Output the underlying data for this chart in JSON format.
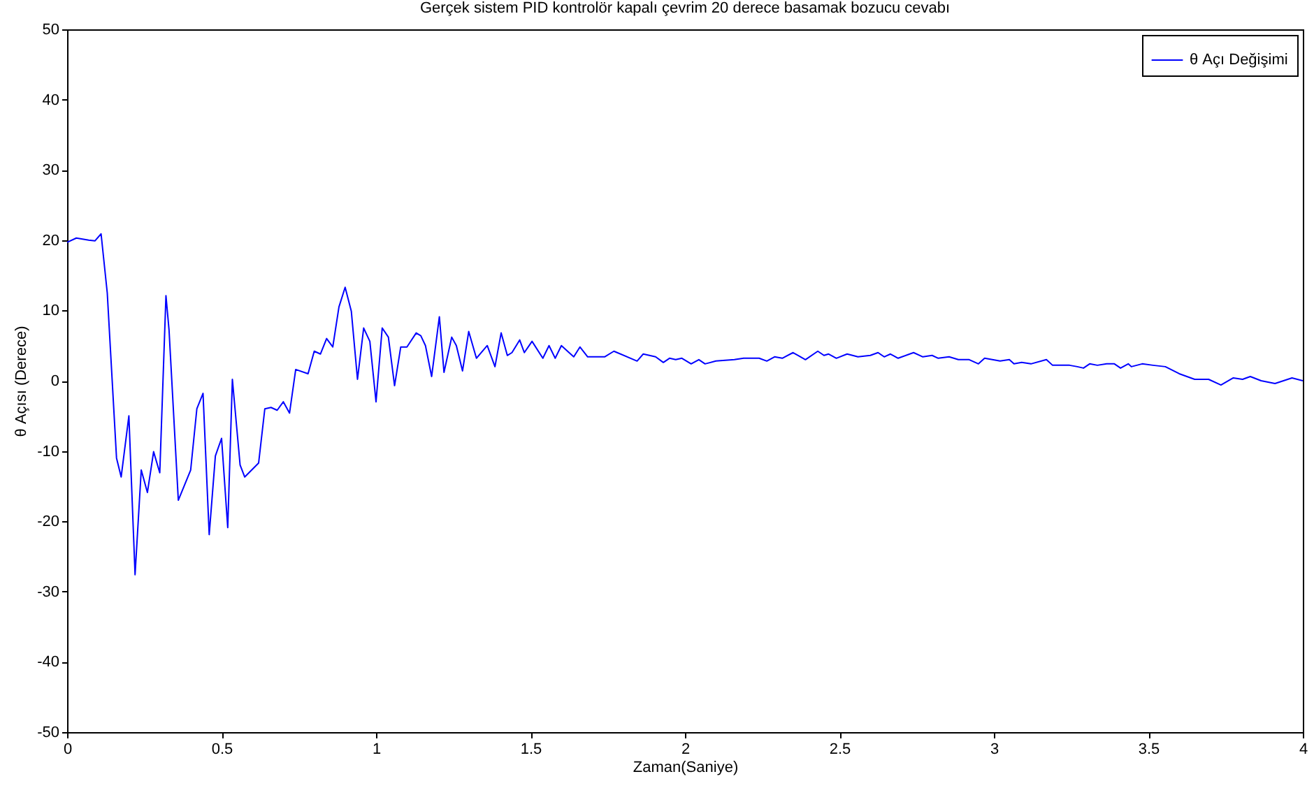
{
  "chart_data": {
    "type": "line",
    "title": "Gerçek sistem PID kontrolör kapalı çevrim 20 derece basamak bozucu cevabı",
    "xlabel": "Zaman(Saniye)",
    "ylabel": "θ Açısı (Derece)",
    "x": [
      0,
      0.03,
      0.07,
      0.09,
      0.11,
      0.13,
      0.16,
      0.175,
      0.2,
      0.22,
      0.24,
      0.26,
      0.28,
      0.3,
      0.32,
      0.33,
      0.36,
      0.4,
      0.42,
      0.44,
      0.46,
      0.48,
      0.5,
      0.52,
      0.535,
      0.56,
      0.575,
      0.62,
      0.64,
      0.66,
      0.68,
      0.7,
      0.72,
      0.74,
      0.78,
      0.8,
      0.82,
      0.84,
      0.86,
      0.88,
      0.9,
      0.92,
      0.94,
      0.96,
      0.98,
      1.0,
      1.02,
      1.04,
      1.06,
      1.08,
      1.1,
      1.13,
      1.145,
      1.16,
      1.18,
      1.205,
      1.22,
      1.245,
      1.26,
      1.28,
      1.3,
      1.325,
      1.36,
      1.385,
      1.405,
      1.425,
      1.44,
      1.465,
      1.48,
      1.505,
      1.54,
      1.56,
      1.58,
      1.6,
      1.64,
      1.66,
      1.685,
      1.74,
      1.77,
      1.845,
      1.865,
      1.905,
      1.93,
      1.95,
      1.97,
      1.99,
      2.02,
      2.045,
      2.065,
      2.1,
      2.16,
      2.19,
      2.24,
      2.265,
      2.29,
      2.315,
      2.35,
      2.39,
      2.43,
      2.45,
      2.465,
      2.49,
      2.525,
      2.56,
      2.6,
      2.625,
      2.645,
      2.665,
      2.69,
      2.74,
      2.77,
      2.8,
      2.82,
      2.855,
      2.885,
      2.92,
      2.95,
      2.97,
      3.02,
      3.05,
      3.065,
      3.09,
      3.12,
      3.17,
      3.19,
      3.245,
      3.27,
      3.29,
      3.31,
      3.335,
      3.365,
      3.39,
      3.41,
      3.435,
      3.445,
      3.48,
      3.515,
      3.555,
      3.6,
      3.65,
      3.695,
      3.735,
      3.775,
      3.805,
      3.83,
      3.865,
      3.91,
      3.965,
      4.0
    ],
    "series": [
      {
        "name": "θ Açı Değişimi",
        "color": "#0000ff",
        "values": [
          19.7,
          20.3,
          20,
          19.9,
          20.9,
          12.5,
          -11,
          -13.7,
          -5,
          -27.6,
          -12.7,
          -15.9,
          -10.1,
          -13.1,
          12.1,
          7.2,
          -17,
          -12.7,
          -4,
          -1.8,
          -21.9,
          -10.7,
          -8.2,
          -20.9,
          0.2,
          -12,
          -13.7,
          -11.7,
          -4,
          -3.8,
          -4.2,
          -3,
          -4.6,
          1.6,
          1,
          4.2,
          3.8,
          6,
          4.8,
          10.5,
          13.3,
          9.9,
          0.2,
          7.5,
          5.6,
          -3,
          7.5,
          6.2,
          -0.7,
          4.8,
          4.8,
          6.8,
          6.4,
          5,
          0.6,
          9.1,
          1.2,
          6.2,
          5,
          1.4,
          7,
          3.2,
          5,
          2,
          6.8,
          3.6,
          4,
          5.8,
          4,
          5.6,
          3.2,
          5,
          3.2,
          5,
          3.4,
          4.8,
          3.4,
          3.4,
          4.2,
          2.8,
          3.8,
          3.4,
          2.6,
          3.2,
          3,
          3.2,
          2.4,
          3,
          2.4,
          2.8,
          3,
          3.2,
          3.2,
          2.8,
          3.4,
          3.2,
          4,
          3,
          4.2,
          3.6,
          3.8,
          3.2,
          3.8,
          3.4,
          3.6,
          4,
          3.4,
          3.8,
          3.2,
          4,
          3.4,
          3.6,
          3.2,
          3.4,
          3,
          3,
          2.4,
          3.2,
          2.8,
          3,
          2.4,
          2.6,
          2.4,
          3,
          2.2,
          2.2,
          2,
          1.8,
          2.4,
          2.2,
          2.4,
          2.4,
          1.8,
          2.4,
          2,
          2.4,
          2.2,
          2,
          1,
          0.2,
          0.2,
          -0.6,
          0.4,
          0.2,
          0.6,
          0,
          -0.4,
          0.4,
          0
        ]
      }
    ],
    "xlim": [
      0,
      4
    ],
    "xticks": [
      0,
      0.5,
      1,
      1.5,
      2,
      2.5,
      3,
      3.5,
      4
    ],
    "ylim": [
      -50,
      50
    ],
    "yticks": [
      -50,
      -40,
      -30,
      -20,
      -10,
      0,
      10,
      20,
      30,
      40,
      50
    ],
    "legend": "top right",
    "grid": false,
    "line_style": "solid"
  }
}
